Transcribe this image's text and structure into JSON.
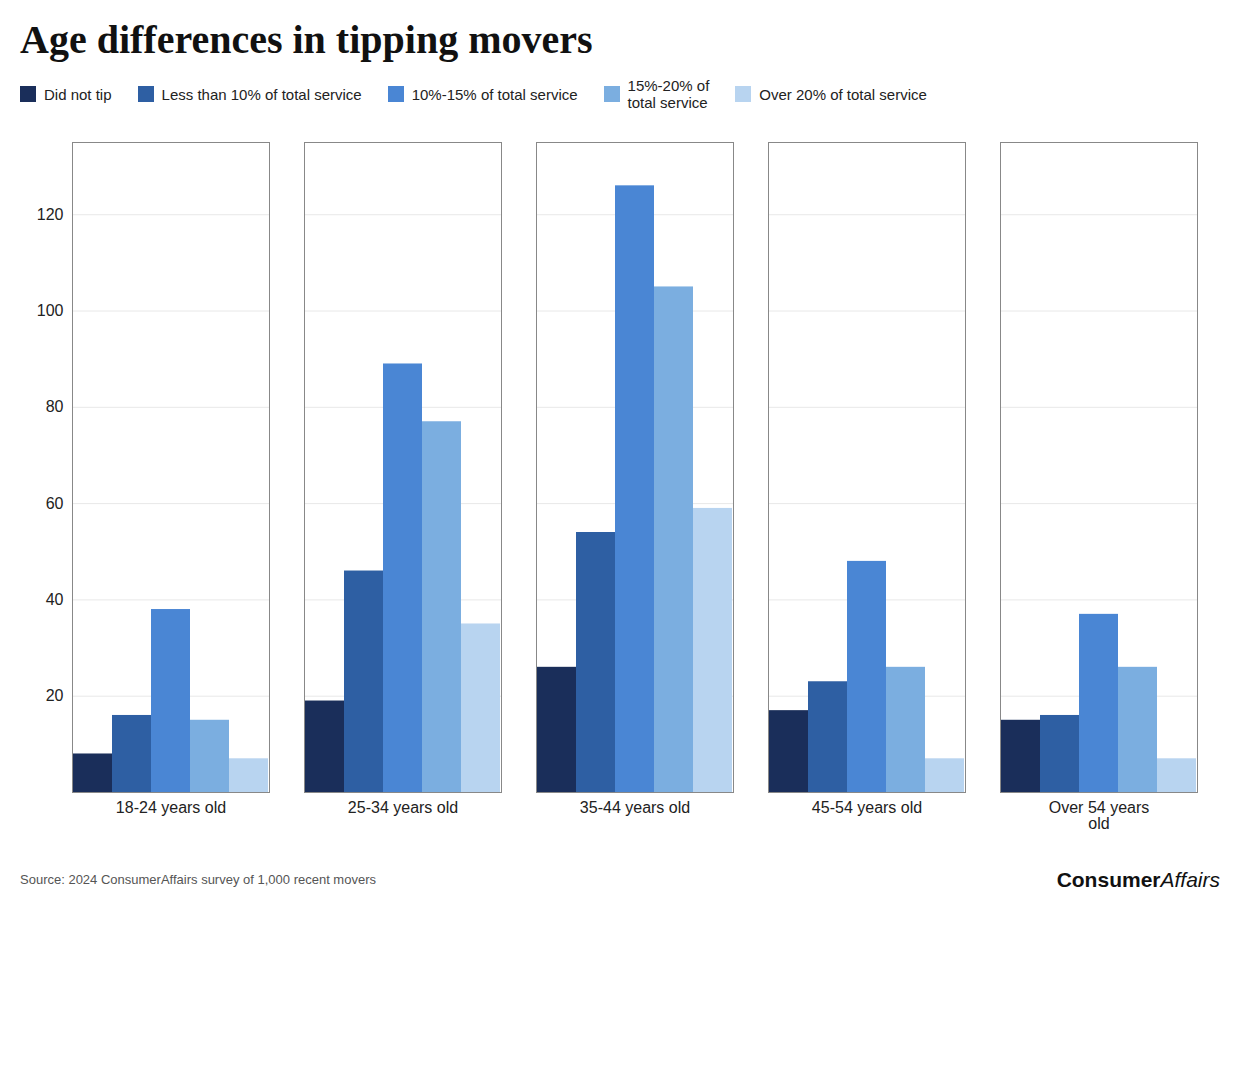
{
  "chart_data": {
    "type": "bar",
    "title": "Age differences in tipping movers",
    "categories": [
      "18-24 years old",
      "25-34 years old",
      "35-44 years old",
      "45-54 years old",
      "Over 54 years\nold"
    ],
    "series": [
      {
        "name": "Did not tip",
        "color": "#1a2e5a",
        "values": [
          8,
          19,
          26,
          17,
          15
        ]
      },
      {
        "name": "Less than 10% of total service",
        "color": "#2e5fa3",
        "values": [
          16,
          46,
          54,
          23,
          16
        ]
      },
      {
        "name": "10%-15% of total service",
        "color": "#4a86d4",
        "values": [
          38,
          89,
          126,
          48,
          37
        ]
      },
      {
        "name": "15%-20% of\ntotal service",
        "color": "#7baee0",
        "values": [
          15,
          77,
          105,
          26,
          26
        ]
      },
      {
        "name": "Over 20% of total service",
        "color": "#b8d4f0",
        "values": [
          7,
          35,
          59,
          7,
          7
        ]
      }
    ],
    "ylim": [
      0,
      135
    ],
    "yticks": [
      20,
      40,
      60,
      80,
      100,
      120
    ],
    "grid": true,
    "annotations": [
      "Source: 2024 ConsumerAffairs survey of 1,000 recent movers",
      "Consumer",
      "Affairs"
    ]
  }
}
